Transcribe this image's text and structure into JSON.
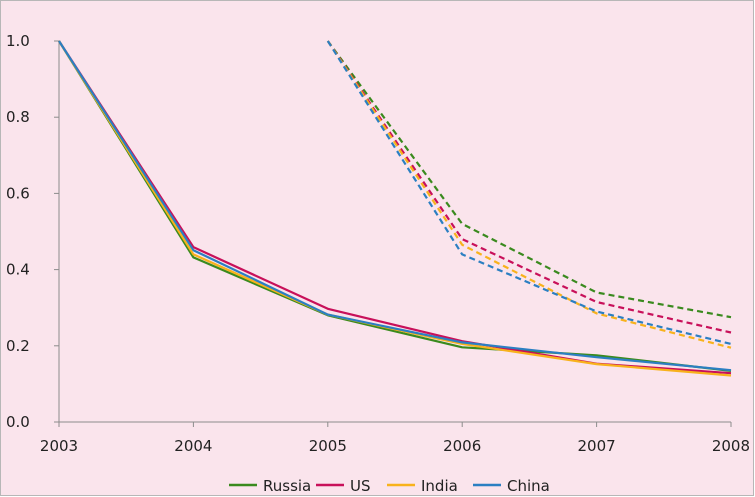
{
  "chart_data": {
    "type": "line",
    "title": "",
    "xlabel": "",
    "ylabel": "",
    "x": [
      "2003",
      "2004",
      "2005",
      "2006",
      "2007",
      "2008"
    ],
    "ylim": [
      0.0,
      1.0
    ],
    "yticks": [
      "0.0",
      "0.2",
      "0.4",
      "0.6",
      "0.8",
      "1.0"
    ],
    "grid": false,
    "legend_position": "bottom",
    "series": [
      {
        "name": "Russia",
        "color": "#3a8a1e",
        "style": "solid",
        "values": [
          1.0,
          0.432,
          0.28,
          0.196,
          0.175,
          0.134
        ]
      },
      {
        "name": "US",
        "color": "#c8105a",
        "style": "solid",
        "values": [
          1.0,
          0.459,
          0.297,
          0.212,
          0.153,
          0.128
        ]
      },
      {
        "name": "India",
        "color": "#f8b21c",
        "style": "solid",
        "values": [
          1.0,
          0.44,
          0.282,
          0.205,
          0.152,
          0.122
        ]
      },
      {
        "name": "China",
        "color": "#2b7fc2",
        "style": "solid",
        "values": [
          1.0,
          0.451,
          0.282,
          0.209,
          0.17,
          0.136
        ]
      },
      {
        "series_of": "Russia",
        "color": "#3a8a1e",
        "style": "dashed",
        "values": [
          null,
          null,
          1.0,
          0.52,
          0.34,
          0.275
        ]
      },
      {
        "series_of": "US",
        "color": "#c8105a",
        "style": "dashed",
        "values": [
          null,
          null,
          1.0,
          0.48,
          0.315,
          0.235
        ]
      },
      {
        "series_of": "India",
        "color": "#f8b21c",
        "style": "dashed",
        "values": [
          null,
          null,
          1.0,
          0.465,
          0.285,
          0.195
        ]
      },
      {
        "series_of": "China",
        "color": "#2b7fc2",
        "style": "dashed",
        "values": [
          null,
          null,
          1.0,
          0.44,
          0.29,
          0.205
        ]
      }
    ]
  }
}
